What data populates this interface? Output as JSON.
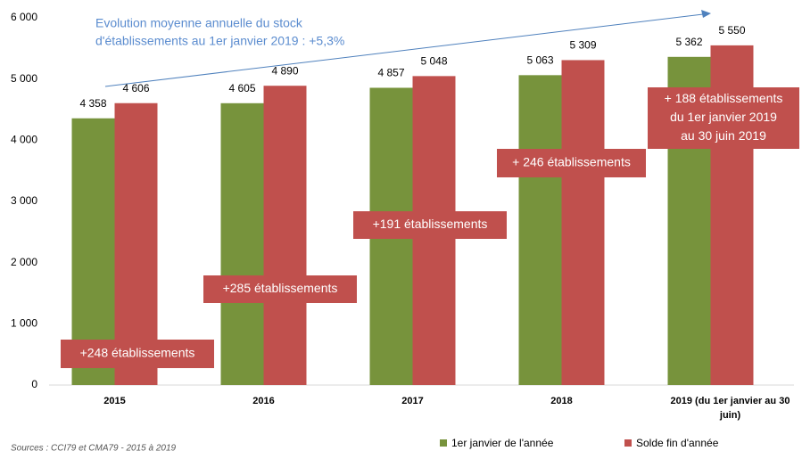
{
  "chart_data": {
    "type": "bar",
    "note": [
      "Evolution moyenne annuelle du stock",
      "d'établissements au 1er janvier 2019 : +5,3%"
    ],
    "categories": [
      "2015",
      "2016",
      "2017",
      "2018",
      "2019 (du 1er janvier au 30 juin)"
    ],
    "series": [
      {
        "name": "1er janvier de l'année",
        "color": "#77933c",
        "values": [
          4358,
          4605,
          4857,
          5063,
          5362
        ],
        "value_labels": [
          "4 358",
          "4 605",
          "4 857",
          "5 063",
          "5 362"
        ]
      },
      {
        "name": "Solde fin d'année",
        "color": "#c0504d",
        "values": [
          4606,
          4890,
          5048,
          5309,
          5550
        ],
        "value_labels": [
          "4 606",
          "4 890",
          "5 048",
          "5 309",
          "5 550"
        ]
      }
    ],
    "annotations": [
      [
        "+248 établissements"
      ],
      [
        "+285 établissements"
      ],
      [
        "+191 établissements"
      ],
      [
        "+ 246 établissements"
      ],
      [
        "+ 188 établissements",
        "du 1er janvier 2019",
        "au 30 juin 2019"
      ]
    ],
    "ylim": [
      0,
      6000
    ],
    "yticks": [
      0,
      {
        "value": 1000,
        "label": "1 000"
      },
      {
        "value": 2000,
        "label": "2 000"
      },
      {
        "value": 3000,
        "label": "3 000"
      },
      {
        "value": 4000,
        "label": "4 000"
      },
      {
        "value": 5000,
        "label": "5 000"
      },
      {
        "value": 6000,
        "label": "6 000"
      }
    ],
    "source": "Sources : CCI79 et CMA79 - 2015 à 2019",
    "legend": "bottom-right"
  }
}
